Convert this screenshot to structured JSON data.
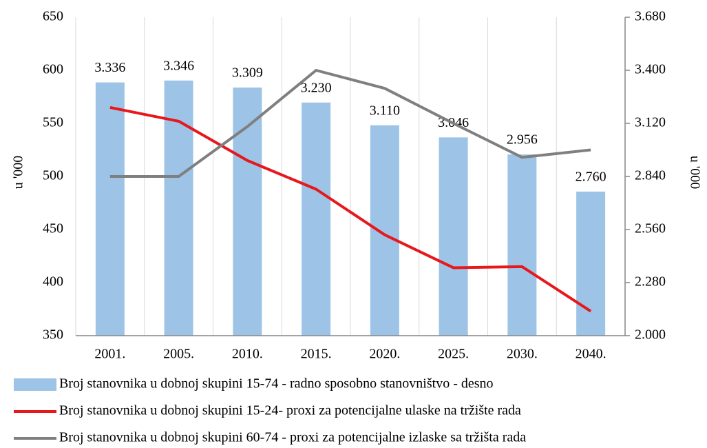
{
  "chart_data": {
    "type": "bar",
    "categories": [
      "2001.",
      "2005.",
      "2010.",
      "2015.",
      "2020.",
      "2025.",
      "2030.",
      "2040."
    ],
    "ylabel": "u '000",
    "y2label": "u '000",
    "ylim": [
      350,
      650
    ],
    "yticks": [
      350,
      400,
      450,
      500,
      550,
      600,
      650
    ],
    "y2lim": [
      2000,
      3680
    ],
    "y2ticks": [
      {
        "value": 2000,
        "label": "2.000"
      },
      {
        "value": 2280,
        "label": "2.280"
      },
      {
        "value": 2560,
        "label": "2.560"
      },
      {
        "value": 2840,
        "label": "2.840"
      },
      {
        "value": 3120,
        "label": "3.120"
      },
      {
        "value": 3400,
        "label": "3.400"
      },
      {
        "value": 3680,
        "label": "3.680"
      }
    ],
    "series": [
      {
        "name": "Broj stanovnika u dobnoj skupini 15-74 - radno sposobno stanovništvo - desno",
        "type": "bar",
        "axis": "y2",
        "color": "#9dc3e6",
        "values": [
          3336,
          3346,
          3309,
          3230,
          3110,
          3046,
          2956,
          2760
        ],
        "value_labels": [
          "3.336",
          "3.346",
          "3.309",
          "3.230",
          "3.110",
          "3.046",
          "2.956",
          "2.760"
        ]
      },
      {
        "name": "Broj stanovnika u dobnoj skupini 15-24- proxi za potencijalne ulaske na tržište rada",
        "type": "line",
        "color": "#e8171b",
        "values": [
          565,
          552,
          515,
          488,
          445,
          414,
          415,
          373
        ]
      },
      {
        "name": "Broj stanovnika u dobnoj skupini 60-74 - proxi za potencijalne izlaske sa tržišta rada",
        "type": "line",
        "color": "#7f7f7f",
        "values": [
          500,
          500,
          547,
          600,
          583,
          550,
          518,
          525
        ]
      }
    ]
  }
}
